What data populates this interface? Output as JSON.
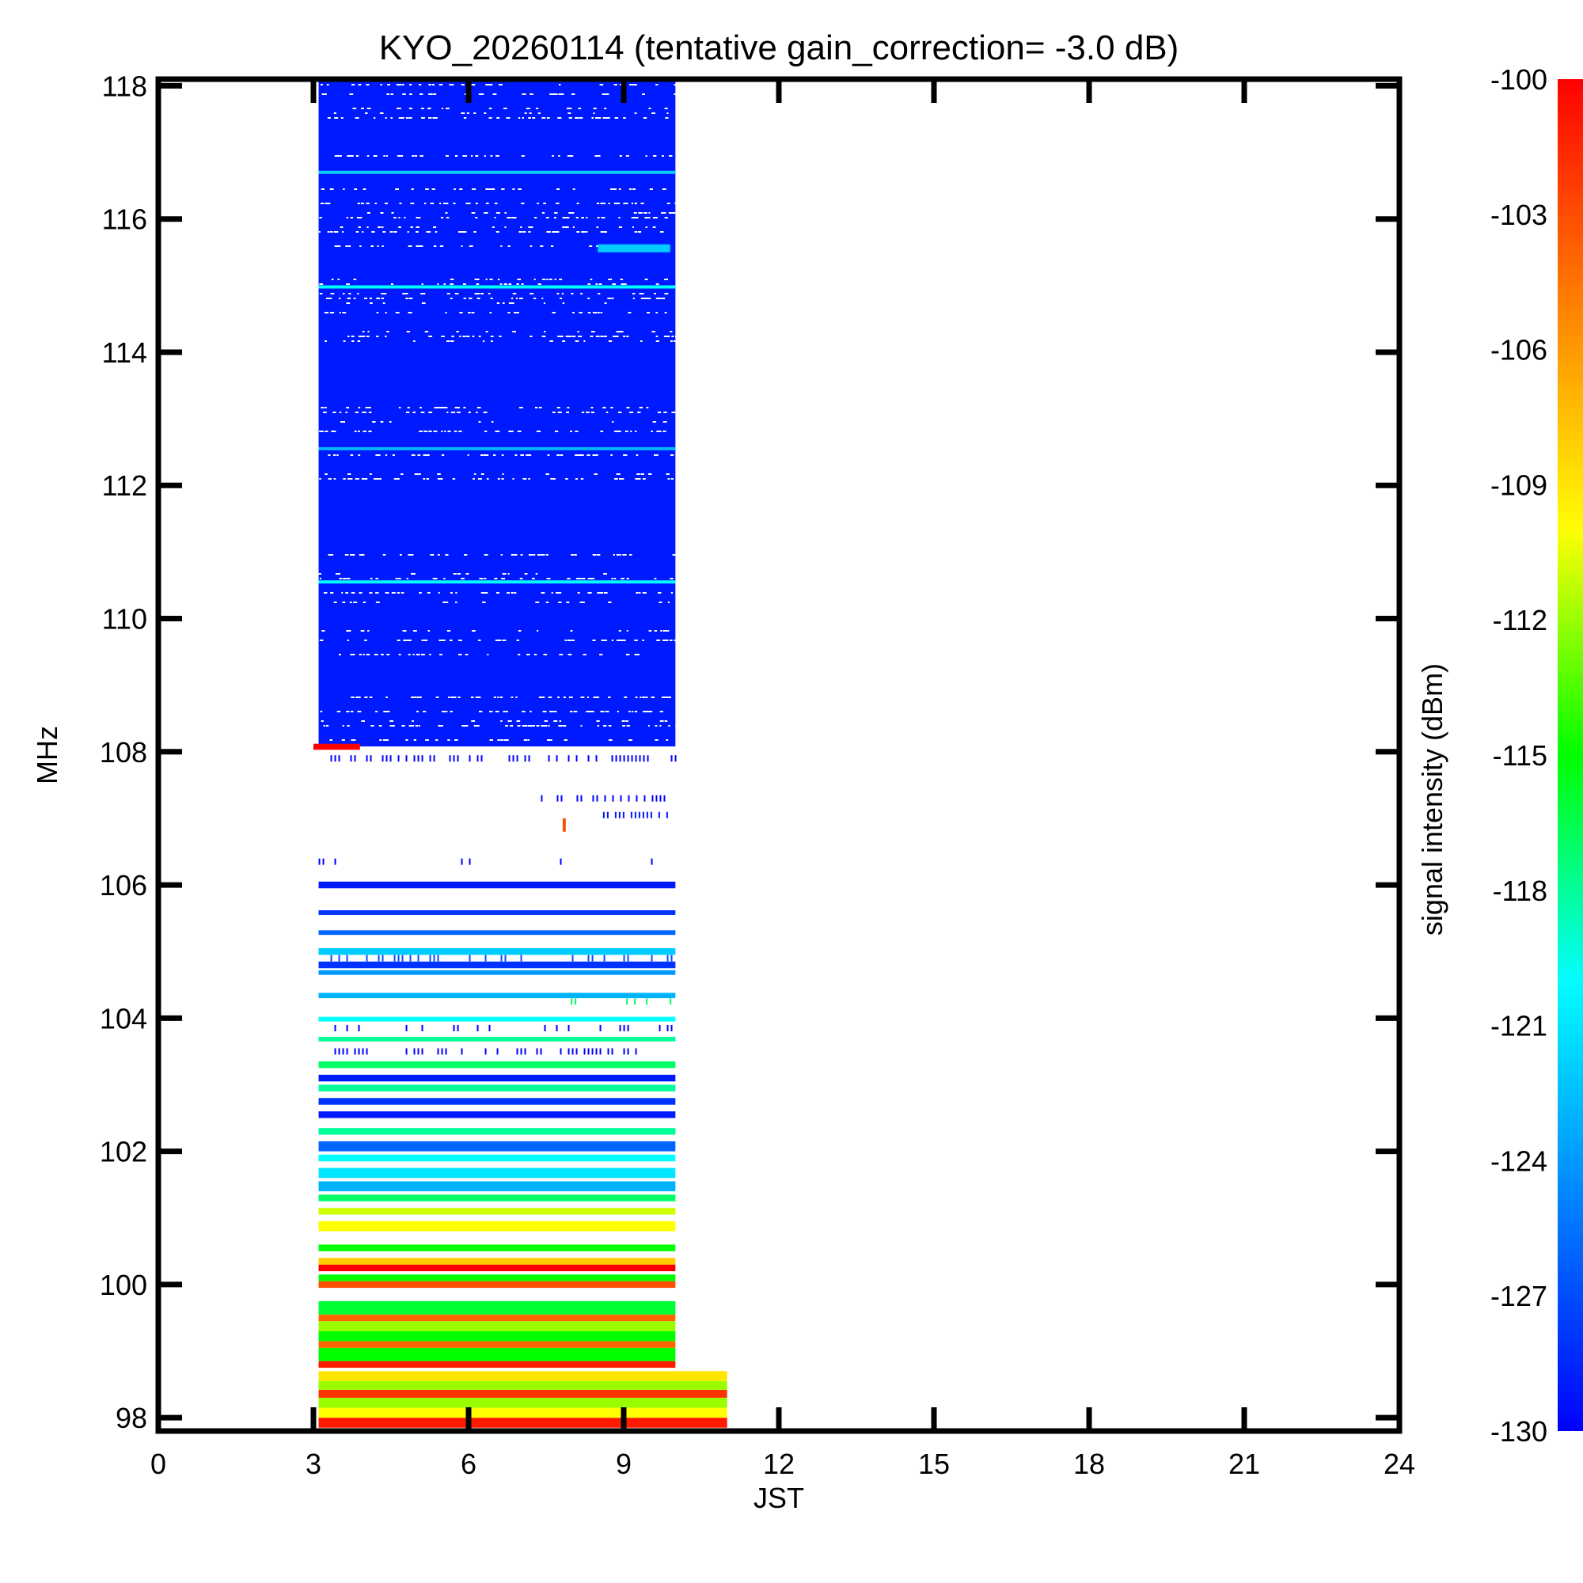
{
  "chart_data": {
    "type": "heatmap",
    "title": "KYO_20260114 (tentative gain_correction= -3.0 dB)",
    "xlabel": "JST",
    "ylabel": "MHz",
    "colorbar_label": "signal intensity (dBm)",
    "xlim": [
      0,
      24
    ],
    "ylim": [
      97.8,
      118.1
    ],
    "x_ticks": [
      0,
      3,
      6,
      9,
      12,
      15,
      18,
      21,
      24
    ],
    "y_ticks": [
      98,
      100,
      102,
      104,
      106,
      108,
      110,
      112,
      114,
      116,
      118
    ],
    "x_tick_labels": [
      "0",
      "3",
      "6",
      "9",
      "12",
      "15",
      "18",
      "21",
      "24"
    ],
    "y_tick_labels": [
      "98",
      "100",
      "102",
      "104",
      "106",
      "108",
      "110",
      "112",
      "114",
      "116",
      "118"
    ],
    "colorbar_ticks": [
      -100,
      -103,
      -106,
      -109,
      -112,
      -115,
      -118,
      -121,
      -124,
      -127,
      -130
    ],
    "colorbar_tick_labels": [
      "-100",
      "-103",
      "-106",
      "-109",
      "-112",
      "-115",
      "-118",
      "-121",
      "-124",
      "-127",
      "-130"
    ],
    "colorbar_range": [
      -130,
      -100
    ],
    "colormap": [
      "#0000ff",
      "#0080ff",
      "#00ffff",
      "#00ff00",
      "#ffff00",
      "#ff8000",
      "#ff0000"
    ],
    "data_extent": {
      "x_start": 3.1,
      "x_end": 10.0,
      "x_end_low_band": 11.0,
      "low_band_max_mhz": 98.7
    },
    "bands": [
      {
        "f0": 97.85,
        "f1": 98.0,
        "level": -101
      },
      {
        "f0": 98.0,
        "f1": 98.15,
        "level": -110
      },
      {
        "f0": 98.15,
        "f1": 98.3,
        "level": -112
      },
      {
        "f0": 98.3,
        "f1": 98.42,
        "level": -102
      },
      {
        "f0": 98.42,
        "f1": 98.55,
        "level": -112
      },
      {
        "f0": 98.55,
        "f1": 98.7,
        "level": -109
      },
      {
        "f0": 98.75,
        "f1": 98.85,
        "level": -101
      },
      {
        "f0": 98.85,
        "f1": 99.05,
        "level": -115
      },
      {
        "f0": 99.05,
        "f1": 99.15,
        "level": -104
      },
      {
        "f0": 99.15,
        "f1": 99.3,
        "level": -115
      },
      {
        "f0": 99.3,
        "f1": 99.45,
        "level": -112
      },
      {
        "f0": 99.45,
        "f1": 99.55,
        "level": -104
      },
      {
        "f0": 99.55,
        "f1": 99.75,
        "level": -116
      },
      {
        "f0": 99.95,
        "f1": 100.05,
        "level": -103
      },
      {
        "f0": 100.05,
        "f1": 100.15,
        "level": -115
      },
      {
        "f0": 100.2,
        "f1": 100.3,
        "level": -100
      },
      {
        "f0": 100.3,
        "f1": 100.4,
        "level": -108
      },
      {
        "f0": 100.5,
        "f1": 100.6,
        "level": -115
      },
      {
        "f0": 100.8,
        "f1": 100.95,
        "level": -110
      },
      {
        "f0": 101.05,
        "f1": 101.15,
        "level": -111
      },
      {
        "f0": 101.25,
        "f1": 101.35,
        "level": -117
      },
      {
        "f0": 101.4,
        "f1": 101.55,
        "level": -123
      },
      {
        "f0": 101.6,
        "f1": 101.75,
        "level": -121
      },
      {
        "f0": 101.85,
        "f1": 101.95,
        "level": -120
      },
      {
        "f0": 102.0,
        "f1": 102.15,
        "level": -126
      },
      {
        "f0": 102.25,
        "f1": 102.35,
        "level": -118
      },
      {
        "f0": 102.5,
        "f1": 102.6,
        "level": -129
      },
      {
        "f0": 102.7,
        "f1": 102.8,
        "level": -128
      },
      {
        "f0": 102.9,
        "f1": 103.0,
        "level": -118
      },
      {
        "f0": 103.05,
        "f1": 103.15,
        "level": -129
      },
      {
        "f0": 103.25,
        "f1": 103.35,
        "level": -117
      },
      {
        "f0": 103.65,
        "f1": 103.72,
        "level": -118
      },
      {
        "f0": 103.95,
        "f1": 104.02,
        "level": -120
      },
      {
        "f0": 104.3,
        "f1": 104.38,
        "level": -123
      },
      {
        "f0": 104.65,
        "f1": 104.72,
        "level": -124
      },
      {
        "f0": 104.75,
        "f1": 104.85,
        "level": -128
      },
      {
        "f0": 104.95,
        "f1": 105.05,
        "level": -122
      },
      {
        "f0": 105.25,
        "f1": 105.32,
        "level": -126
      },
      {
        "f0": 105.55,
        "f1": 105.62,
        "level": -128
      },
      {
        "f0": 105.95,
        "f1": 106.05,
        "level": -129
      },
      {
        "f0": 108.08,
        "f1": 118.1,
        "level": -129
      }
    ],
    "texture": {
      "f_min": 108.08,
      "f_max": 118.1,
      "level": -129
    },
    "faint_lines": [
      {
        "f": 110.55,
        "level": -120
      },
      {
        "f": 112.55,
        "level": -123
      },
      {
        "f": 114.98,
        "level": -120
      },
      {
        "f": 116.7,
        "level": -122
      }
    ],
    "features": [
      {
        "label": "",
        "x0": 8.5,
        "x1": 9.9,
        "f0": 115.5,
        "f1": 115.62,
        "level": -122
      },
      {
        "label": "",
        "x0": 3.0,
        "x1": 3.9,
        "f0": 108.03,
        "f1": 108.12,
        "level": -100
      },
      {
        "label": "",
        "x0": 7.82,
        "x1": 7.88,
        "f0": 106.8,
        "f1": 107.0,
        "level": -103
      }
    ],
    "sparse_rows": [
      {
        "f": 107.9,
        "density": 0.5,
        "x0": 3.1,
        "x1": 10.0,
        "level": -130
      },
      {
        "f": 107.7,
        "density": 0.08,
        "x0": 4.2,
        "x1": 4.8,
        "level": -129
      },
      {
        "f": 107.3,
        "density": 0.6,
        "x0": 7.4,
        "x1": 9.9,
        "level": -130
      },
      {
        "f": 107.05,
        "density": 0.7,
        "x0": 8.6,
        "x1": 9.9,
        "level": -129
      },
      {
        "f": 106.35,
        "density": 0.12,
        "x0": 3.1,
        "x1": 10.0,
        "level": -130
      },
      {
        "f": 104.9,
        "density": 0.3,
        "x0": 3.1,
        "x1": 10.0,
        "level": -127
      },
      {
        "f": 104.25,
        "density": 0.2,
        "x0": 7.9,
        "x1": 10.0,
        "level": -117
      },
      {
        "f": 103.85,
        "density": 0.2,
        "x0": 3.1,
        "x1": 10.0,
        "level": -130
      },
      {
        "f": 103.5,
        "density": 0.45,
        "x0": 3.1,
        "x1": 10.0,
        "level": -130
      }
    ],
    "empty_rows_visible": "none",
    "grid": false,
    "legend": "none"
  }
}
